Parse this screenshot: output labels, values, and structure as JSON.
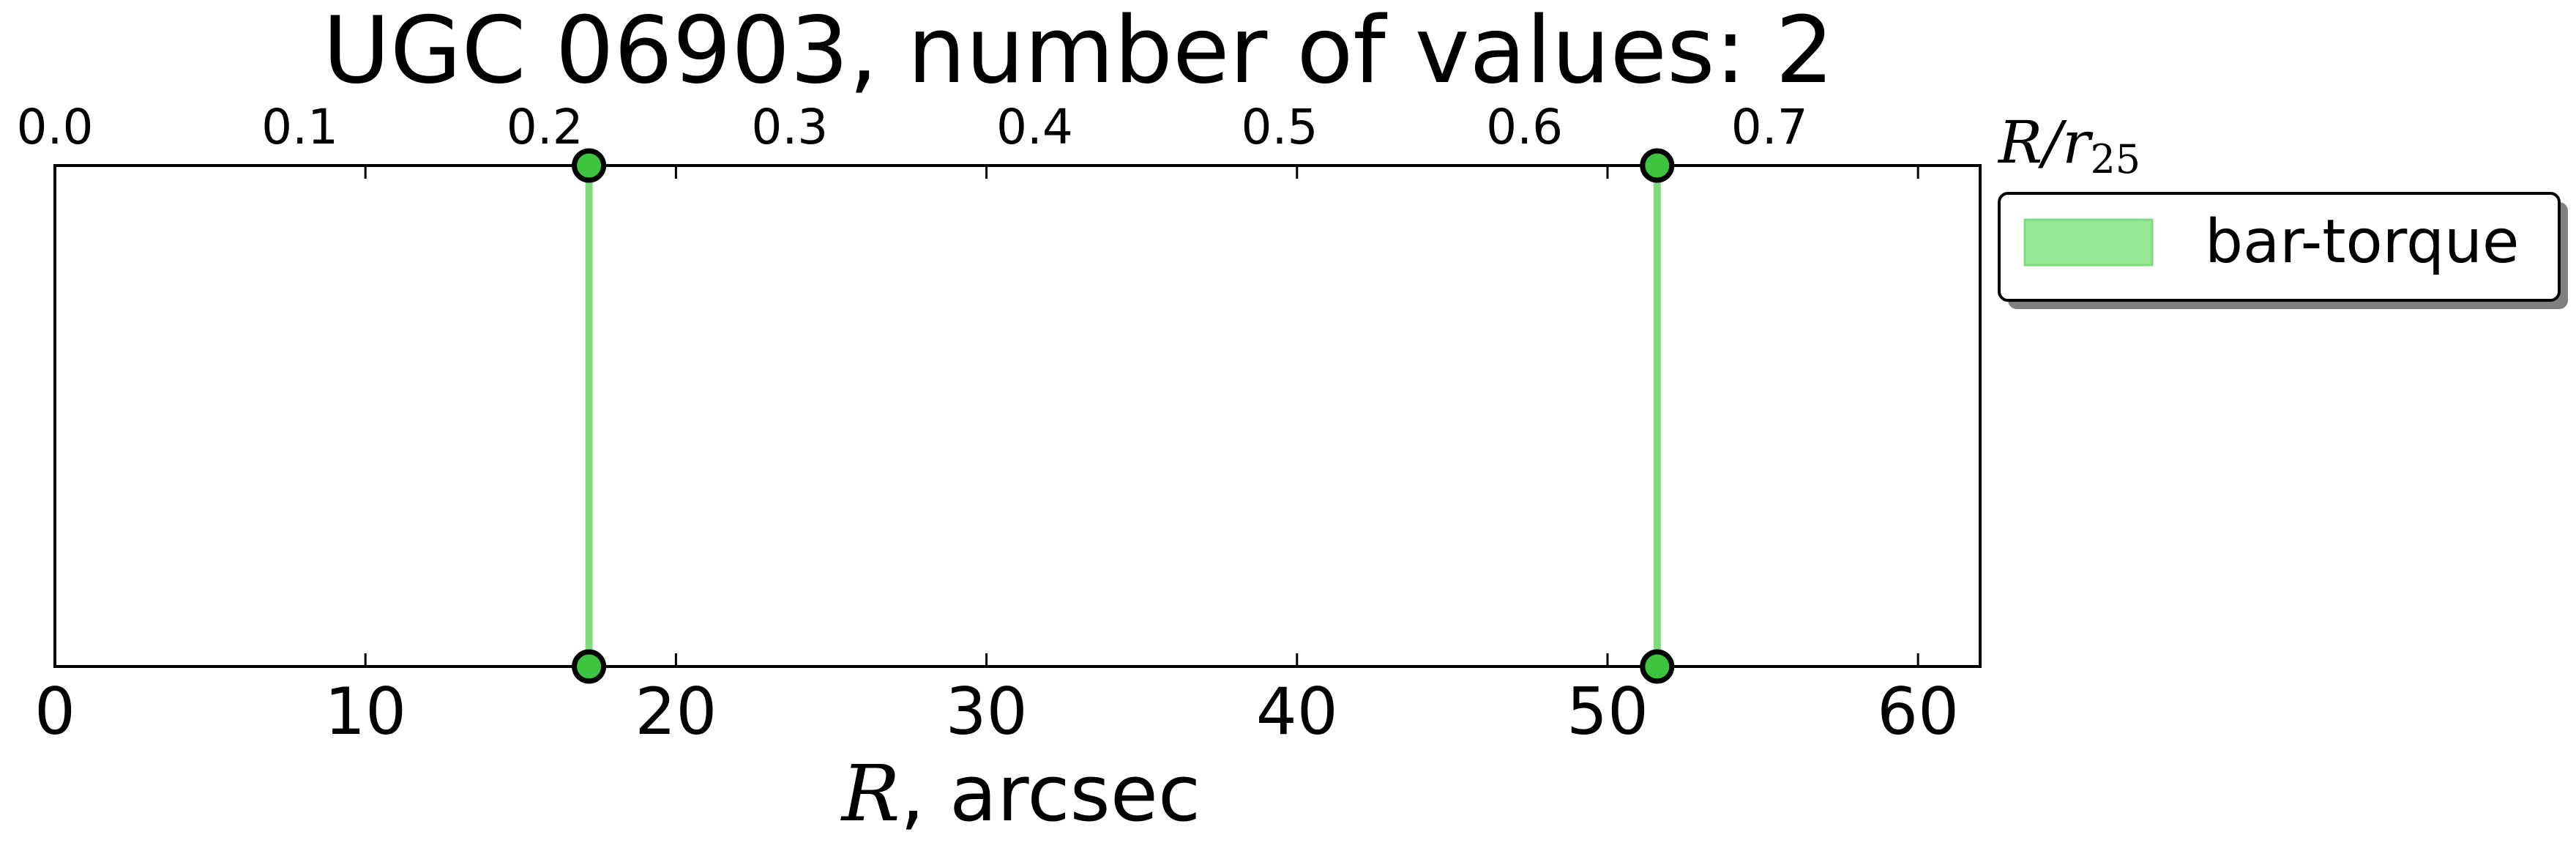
{
  "chart_data": {
    "type": "line",
    "title": "UGC 06903, number of values: 2",
    "xlabel_var": "R",
    "xlabel_rest": ", arcsec",
    "top_axis_label": {
      "var": "R/r",
      "sub": "25"
    },
    "xlim": [
      0,
      62
    ],
    "x_ticks": [
      "0",
      "10",
      "20",
      "30",
      "40",
      "50",
      "60"
    ],
    "x_tick_values": [
      0,
      10,
      20,
      30,
      40,
      50,
      60
    ],
    "top_xlim": [
      0.0,
      0.786
    ],
    "top_ticks": [
      "0.0",
      "0.1",
      "0.2",
      "0.3",
      "0.4",
      "0.5",
      "0.6",
      "0.7"
    ],
    "top_tick_values": [
      0.0,
      0.1,
      0.2,
      0.3,
      0.4,
      0.5,
      0.6,
      0.7
    ],
    "grid": false,
    "legend_position": "outside-right-top",
    "series": [
      {
        "name": "bar-torque",
        "color": "#7edc7e",
        "marker_color": "#3fc43f",
        "x": [
          17.2,
          51.6
        ]
      }
    ]
  }
}
